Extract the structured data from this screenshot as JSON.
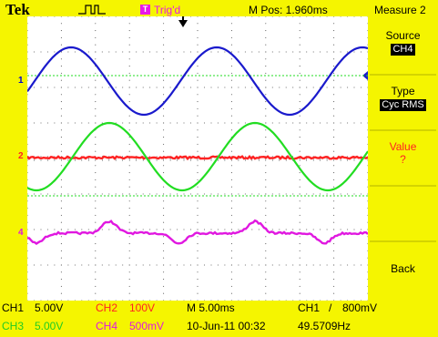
{
  "header": {
    "brand": "Tek",
    "trigger_badge": "T",
    "trigger_status": "Trig'd",
    "position": "M Pos: 1.960ms",
    "menu_title": "Measure 2"
  },
  "channel_markers": {
    "ch1": "1",
    "ch2": "2",
    "ch4": "4"
  },
  "side_menu": {
    "source_label": "Source",
    "source_value": "CH4",
    "type_label": "Type",
    "type_value": "Cyc RMS",
    "value_label": "Value",
    "value_value": "?",
    "back_label": "Back"
  },
  "readout": {
    "ch1": "CH1",
    "ch1_scale": "5.00V",
    "ch2": "CH2",
    "ch2_scale": "100V",
    "timebase": "M 5.00ms",
    "trigger_source": "CH1",
    "trigger_slope": "/",
    "trigger_level": "800mV",
    "ch3": "CH3",
    "ch3_scale": "5.00V",
    "ch4": "CH4",
    "ch4_scale": "500mV",
    "datetime": "10-Jun-11 00:32",
    "frequency": "49.5709Hz"
  },
  "colors": {
    "background": "#f5f500",
    "screen": "#ffffff",
    "ch1": "#1a1acc",
    "ch2": "#ff2222",
    "ch3": "#22dd22",
    "ch4": "#e018e0"
  }
}
